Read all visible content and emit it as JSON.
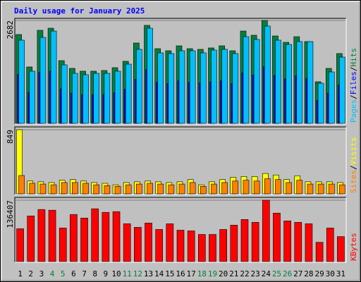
{
  "chart_data": {
    "type": "bar",
    "title": "Daily usage for January 2025",
    "legend_separator": "/",
    "categories": [
      "1",
      "2",
      "3",
      "4",
      "5",
      "6",
      "7",
      "8",
      "9",
      "10",
      "11",
      "12",
      "13",
      "14",
      "15",
      "16",
      "17",
      "18",
      "19",
      "20",
      "21",
      "22",
      "23",
      "24",
      "25",
      "26",
      "27",
      "28",
      "29",
      "30",
      "31"
    ],
    "category_colors": [
      "#000000",
      "#000000",
      "#000000",
      "#008040",
      "#008040",
      "#000000",
      "#000000",
      "#000000",
      "#000000",
      "#000000",
      "#008040",
      "#008040",
      "#000000",
      "#000000",
      "#000000",
      "#000000",
      "#000000",
      "#008040",
      "#008040",
      "#000000",
      "#000000",
      "#000000",
      "#000000",
      "#000000",
      "#008040",
      "#008040",
      "#000000",
      "#000000",
      "#000000",
      "#000000",
      "#000000"
    ],
    "panels": [
      {
        "ylim": [
          0,
          2682
        ],
        "yticks": [
          2682
        ],
        "series": [
          {
            "name": "Hits",
            "color": "#008040",
            "values": [
              2315,
              1470,
              2425,
              2480,
              1635,
              1433,
              1360,
              1360,
              1378,
              1451,
              1617,
              2094,
              2554,
              1947,
              1892,
              2021,
              1947,
              1929,
              1966,
              2021,
              1892,
              2406,
              2296,
              2682,
              2278,
              2112,
              2259,
              2131,
              1084,
              1433,
              1819
            ]
          },
          {
            "name": "Files",
            "color": "#0000FF",
            "values": [
              1270,
              810,
              1330,
              1360,
              900,
              790,
              750,
              750,
              760,
              800,
              890,
              1150,
              1400,
              1070,
              1040,
              1110,
              1070,
              1060,
              1080,
              1110,
              1040,
              1320,
              1260,
              1480,
              1250,
              1160,
              1240,
              1170,
              600,
              790,
              1000
            ]
          },
          {
            "name": "Pages",
            "color": "#00C0FF",
            "values": [
              2168,
              1360,
              2240,
              2406,
              1525,
              1304,
              1268,
              1304,
              1304,
              1360,
              1543,
              1929,
              2480,
              1837,
              1819,
              1892,
              1892,
              1837,
              1911,
              1929,
              1819,
              2259,
              2186,
              2535,
              2168,
              2057,
              2131,
              2131,
              1047,
              1341,
              1727
            ]
          }
        ]
      },
      {
        "ylim": [
          0,
          849
        ],
        "yticks": [
          849
        ],
        "series": [
          {
            "name": "Visits",
            "color": "#FFFF00",
            "values": [
              849,
              170,
              160,
              150,
              180,
              190,
              170,
              150,
              140,
              120,
              150,
              160,
              170,
              160,
              150,
              160,
              190,
              120,
              160,
              190,
              220,
              230,
              230,
              270,
              250,
              190,
              240,
              160,
              160,
              160,
              150
            ]
          },
          {
            "name": "Sites",
            "color": "#FF8000",
            "values": [
              243,
              140,
              130,
              120,
              150,
              150,
              140,
              120,
              110,
              100,
              120,
              130,
              140,
              130,
              120,
              130,
              150,
              100,
              130,
              150,
              170,
              180,
              170,
              200,
              190,
              150,
              180,
              130,
              130,
              130,
              120
            ]
          }
        ]
      },
      {
        "ylim": [
          0,
          136407
        ],
        "yticks": [
          136407
        ],
        "series": [
          {
            "name": "KBytes",
            "color": "#FF0000",
            "values": [
              72960,
              101500,
              115800,
              114200,
              74550,
              104700,
              96760,
              117400,
              109400,
              111000,
              84050,
              76130,
              85650,
              71370,
              84050,
              69790,
              68200,
              60270,
              60270,
              71370,
              80890,
              93580,
              87230,
              136407,
              107800,
              90400,
              87230,
              84050,
              42820,
              74550,
              55510
            ]
          }
        ]
      }
    ]
  }
}
